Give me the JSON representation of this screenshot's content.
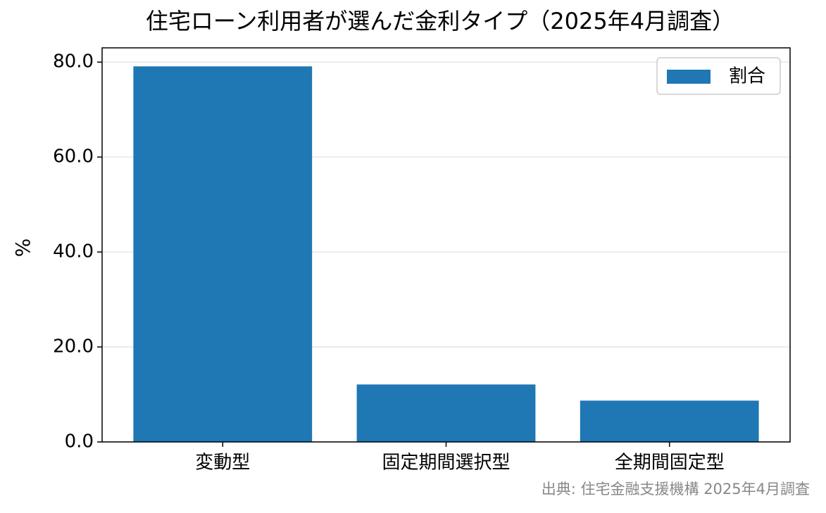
{
  "chart_data": {
    "type": "bar",
    "title": "住宅ローン利用者が選んだ金利タイプ（2025年4月調査）",
    "y_label": "%",
    "categories": [
      "変動型",
      "固定期間選択型",
      "全期間固定型"
    ],
    "series": [
      {
        "name": "割合",
        "color": "#1f77b4",
        "values": [
          79.1,
          12.1,
          8.7
        ]
      }
    ],
    "ylim": [
      0,
      83.0
    ],
    "yticks": [
      {
        "value": 0,
        "label": "0.0"
      },
      {
        "value": 20,
        "label": "20.0"
      },
      {
        "value": 40,
        "label": "40.0"
      },
      {
        "value": 60,
        "label": "60.0"
      },
      {
        "value": 80,
        "label": "80.0"
      }
    ],
    "grid": true,
    "legend": "upper right",
    "source": "出典: 住宅金融支援機構 2025年4月調査"
  }
}
